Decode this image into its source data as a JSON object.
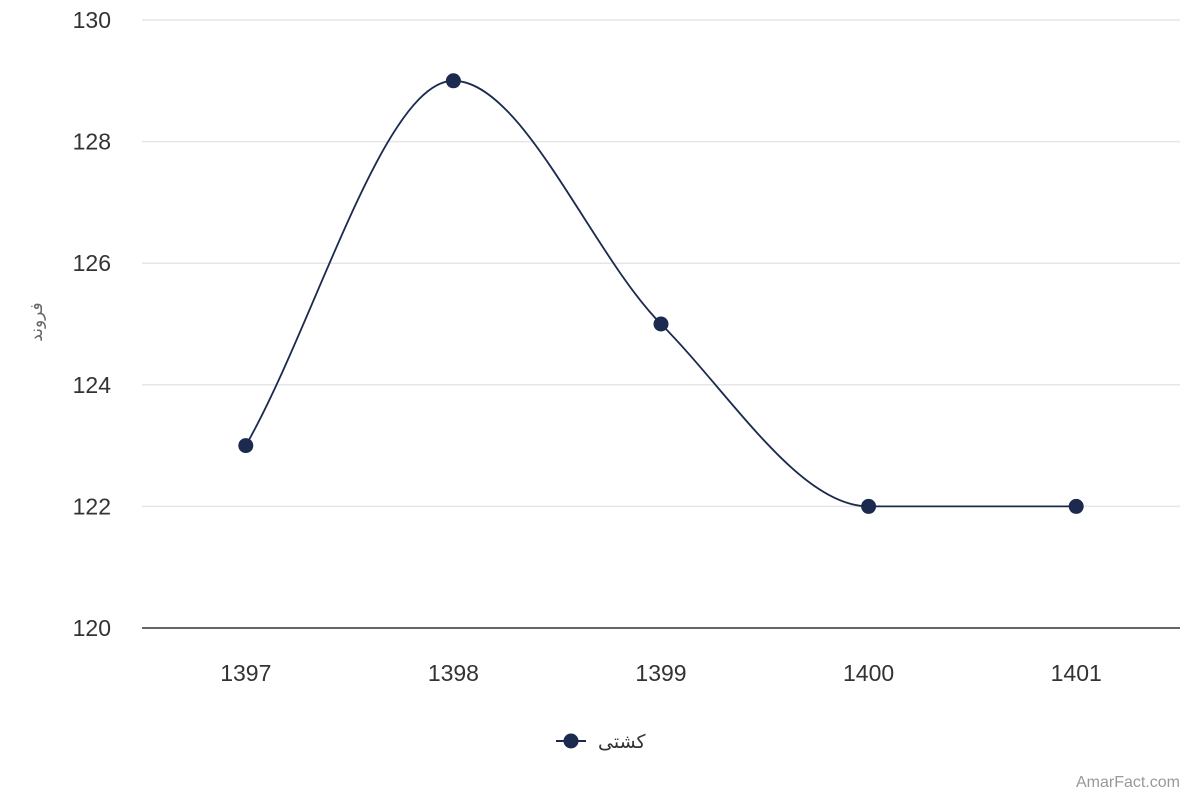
{
  "chart_data": {
    "type": "line",
    "smooth": true,
    "categories": [
      "1397",
      "1398",
      "1399",
      "1400",
      "1401"
    ],
    "series": [
      {
        "name": "کشتی",
        "values": [
          123,
          129,
          125,
          122,
          122
        ]
      }
    ],
    "ylabel": "فروند",
    "ylim": [
      120,
      130
    ],
    "yticks": [
      "120",
      "122",
      "124",
      "126",
      "128",
      "130"
    ],
    "grid": true,
    "legend": "bottom-center",
    "colors": {
      "series": "#1b2a4e",
      "grid": "#e6e6e6",
      "axis": "#333333"
    }
  },
  "credit": "AmarFact.com"
}
